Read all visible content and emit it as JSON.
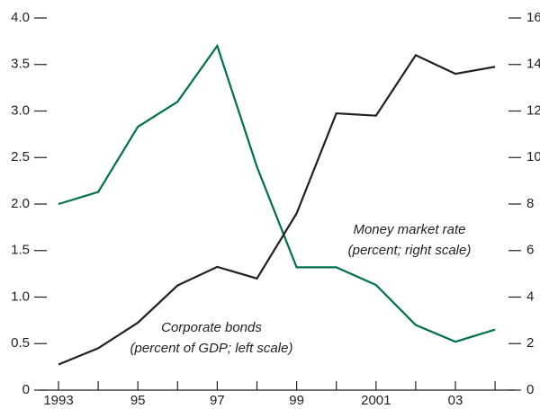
{
  "chart_data": {
    "type": "line",
    "categories": [
      "1993",
      null,
      "95",
      null,
      "97",
      null,
      "99",
      null,
      "2001",
      null,
      "03",
      null
    ],
    "series": [
      {
        "name": "Corporate bonds",
        "color": "#00704a",
        "axis": "y",
        "values": [
          2.0,
          2.13,
          2.83,
          3.1,
          3.7,
          2.4,
          1.32,
          1.32,
          1.13,
          0.7,
          0.52,
          0.65
        ]
      },
      {
        "name": "Money market rate",
        "color": "#231f20",
        "axis": "y2",
        "values": [
          1.1,
          1.8,
          2.9,
          4.5,
          5.3,
          4.8,
          7.6,
          11.9,
          11.8,
          14.4,
          13.6,
          13.9
        ]
      }
    ],
    "annotations": [
      {
        "lines": [
          "Corporate bonds",
          "(percent of GDP; left scale)"
        ]
      },
      {
        "lines": [
          "Money market rate",
          "(percent; right scale)"
        ]
      }
    ],
    "ylim": [
      0,
      4
    ],
    "yticks": [
      0,
      0.5,
      {
        "value": 1,
        "label": "1.0"
      },
      1.5,
      {
        "value": 2,
        "label": "2.0"
      },
      2.5,
      {
        "value": 3,
        "label": "3.0"
      },
      3.5,
      {
        "value": 4,
        "label": "4.0"
      }
    ],
    "y2lim": [
      0,
      16
    ],
    "y2ticks": [
      0,
      2,
      4,
      6,
      8,
      10,
      12,
      14,
      16
    ],
    "grid": false
  }
}
